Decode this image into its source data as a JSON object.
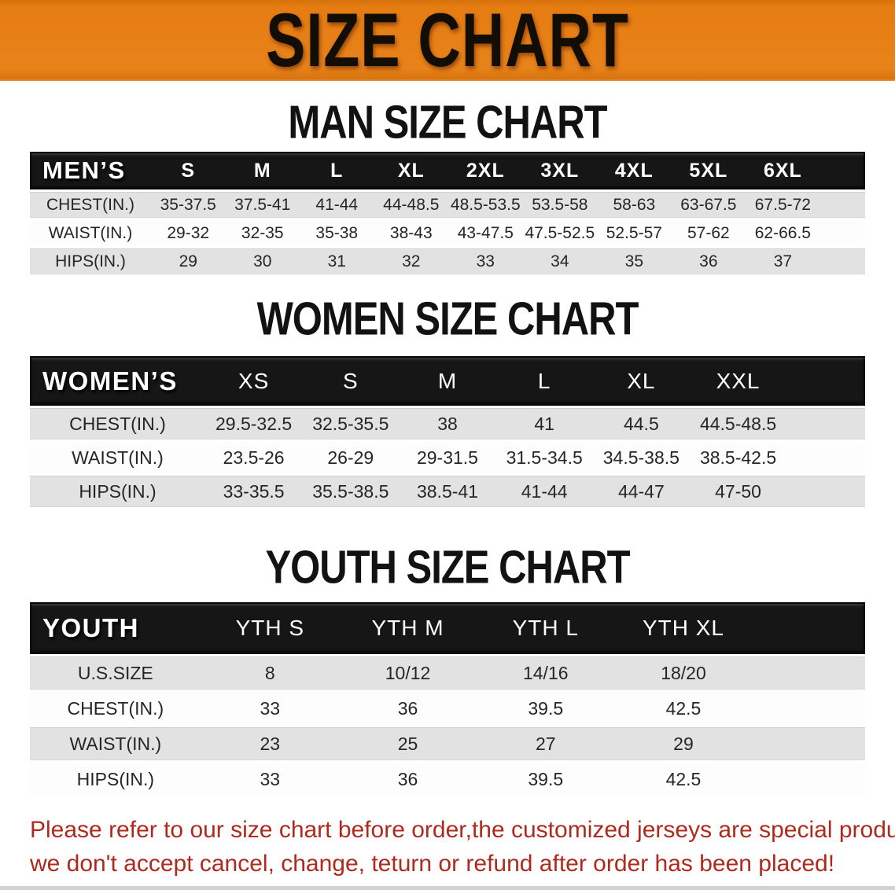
{
  "banner": {
    "title": "SIZE CHART",
    "background_color": "#e8821a"
  },
  "colors": {
    "banner_orange": "#e8821a",
    "table_header_black": "#161616",
    "row_stripe_gray": "#e2e2e2",
    "note_red": "#ae2a1f"
  },
  "sections": [
    {
      "id": "men",
      "heading": "MAN SIZE CHART",
      "corner_label": "MEN’S",
      "columns": [
        "S",
        "M",
        "L",
        "XL",
        "2XL",
        "3XL",
        "4XL",
        "5XL",
        "6XL"
      ],
      "rows": [
        {
          "label": "CHEST(IN.)",
          "values": [
            "35-37.5",
            "37.5-41",
            "41-44",
            "44-48.5",
            "48.5-53.5",
            "53.5-58",
            "58-63",
            "63-67.5",
            "67.5-72"
          ]
        },
        {
          "label": "WAIST(IN.)",
          "values": [
            "29-32",
            "32-35",
            "35-38",
            "38-43",
            "43-47.5",
            "47.5-52.5",
            "52.5-57",
            "57-62",
            "62-66.5"
          ]
        },
        {
          "label": "HIPS(IN.)",
          "values": [
            "29",
            "30",
            "31",
            "32",
            "33",
            "34",
            "35",
            "36",
            "37"
          ]
        }
      ]
    },
    {
      "id": "women",
      "heading": "WOMEN SIZE CHART",
      "corner_label": "WOMEN’S",
      "columns": [
        "XS",
        "S",
        "M",
        "L",
        "XL",
        "XXL"
      ],
      "rows": [
        {
          "label": "CHEST(IN.)",
          "values": [
            "29.5-32.5",
            "32.5-35.5",
            "38",
            "41",
            "44.5",
            "44.5-48.5"
          ]
        },
        {
          "label": "WAIST(IN.)",
          "values": [
            "23.5-26",
            "26-29",
            "29-31.5",
            "31.5-34.5",
            "34.5-38.5",
            "38.5-42.5"
          ]
        },
        {
          "label": "HIPS(IN.)",
          "values": [
            "33-35.5",
            "35.5-38.5",
            "38.5-41",
            "41-44",
            "44-47",
            "47-50"
          ]
        }
      ]
    },
    {
      "id": "youth",
      "heading": "YOUTH SIZE CHART",
      "corner_label": "YOUTH",
      "columns": [
        "YTH S",
        "YTH M",
        "YTH L",
        "YTH XL"
      ],
      "rows": [
        {
          "label": "U.S.SIZE",
          "values": [
            "8",
            "10/12",
            "14/16",
            "18/20"
          ]
        },
        {
          "label": "CHEST(IN.)",
          "values": [
            "33",
            "36",
            "39.5",
            "42.5"
          ]
        },
        {
          "label": "WAIST(IN.)",
          "values": [
            "23",
            "25",
            "27",
            "29"
          ]
        },
        {
          "label": "HIPS(IN.)",
          "values": [
            "33",
            "36",
            "39.5",
            "42.5"
          ]
        }
      ]
    }
  ],
  "note": {
    "lines": [
      "Please refer to our size chart before order,the customized jerseys are special products,",
      "we don't accept cancel, change, teturn or refund after order has been placed!"
    ]
  }
}
